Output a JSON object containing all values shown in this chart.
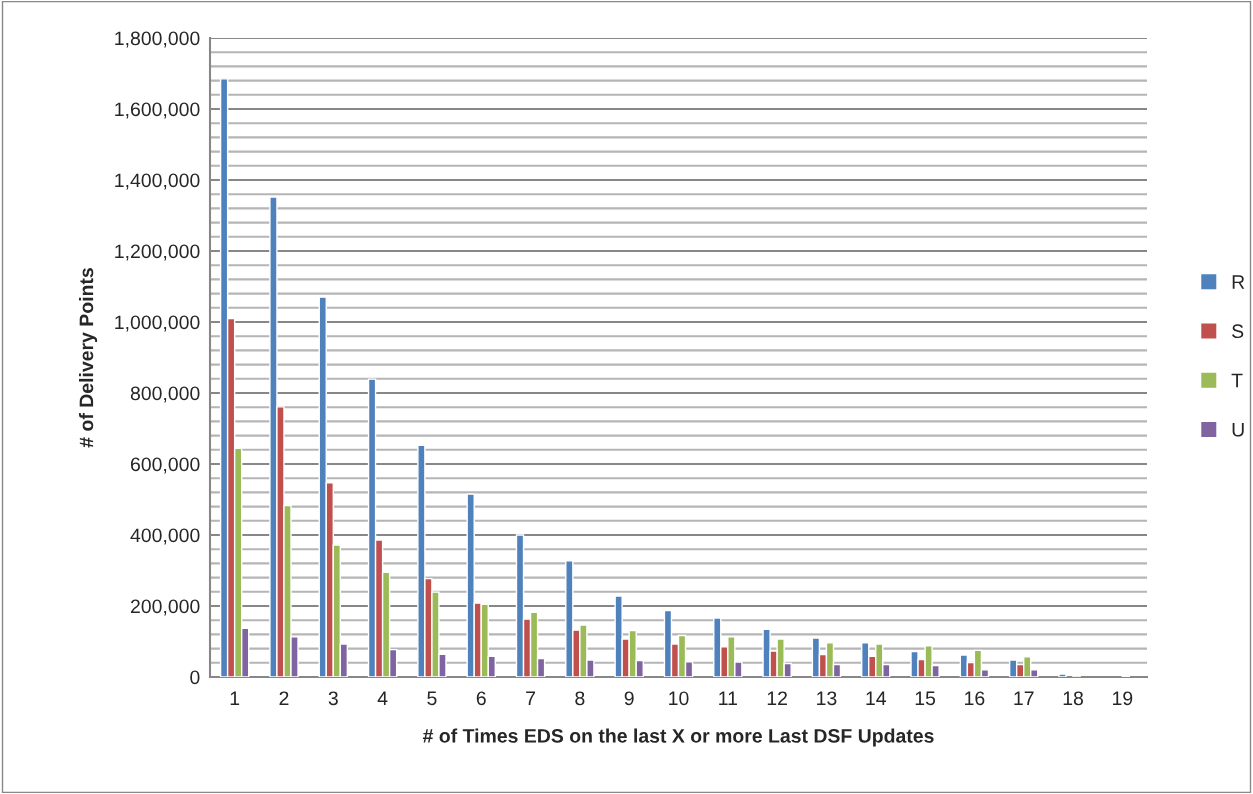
{
  "chart_data": {
    "type": "bar",
    "xlabel": "# of Times EDS on the last X or more Last DSF Updates",
    "ylabel": "# of Delivery Points",
    "categories": [
      "1",
      "2",
      "3",
      "4",
      "5",
      "6",
      "7",
      "8",
      "9",
      "10",
      "11",
      "12",
      "13",
      "14",
      "15",
      "16",
      "17",
      "18",
      "19"
    ],
    "series": [
      {
        "name": "R",
        "color": "#4f81bd",
        "values": [
          1685000,
          1352000,
          1070000,
          839000,
          653000,
          515000,
          400000,
          327000,
          228000,
          187000,
          166000,
          134000,
          110000,
          96000,
          72000,
          62000,
          48000,
          8000,
          null
        ]
      },
      {
        "name": "S",
        "color": "#c0504d",
        "values": [
          1010000,
          761000,
          547000,
          386000,
          277000,
          208000,
          163000,
          132000,
          107000,
          93000,
          85000,
          73000,
          63000,
          58000,
          49000,
          41000,
          35000,
          null,
          null
        ]
      },
      {
        "name": "T",
        "color": "#9bbb59",
        "values": [
          644000,
          483000,
          372000,
          295000,
          239000,
          205000,
          182000,
          146000,
          131000,
          117000,
          113000,
          107000,
          96000,
          93000,
          88000,
          75000,
          57000,
          5000,
          4000
        ]
      },
      {
        "name": "U",
        "color": "#8064a2",
        "values": [
          137000,
          113000,
          93000,
          77000,
          64000,
          58000,
          52000,
          48000,
          46000,
          43000,
          42000,
          38000,
          35000,
          35000,
          32000,
          20000,
          20000,
          null,
          null
        ]
      }
    ],
    "ylim": [
      0,
      1800000
    ],
    "yticks": [
      {
        "value": 0,
        "label": "0"
      },
      {
        "value": 40000,
        "label": null
      },
      {
        "value": 80000,
        "label": null
      },
      {
        "value": 120000,
        "label": null
      },
      {
        "value": 160000,
        "label": null
      },
      {
        "value": 200000,
        "label": "200,000"
      },
      {
        "value": 240000,
        "label": null
      },
      {
        "value": 280000,
        "label": null
      },
      {
        "value": 320000,
        "label": null
      },
      {
        "value": 360000,
        "label": null
      },
      {
        "value": 400000,
        "label": "400,000"
      },
      {
        "value": 440000,
        "label": null
      },
      {
        "value": 480000,
        "label": null
      },
      {
        "value": 520000,
        "label": null
      },
      {
        "value": 560000,
        "label": null
      },
      {
        "value": 600000,
        "label": "600,000"
      },
      {
        "value": 640000,
        "label": null
      },
      {
        "value": 680000,
        "label": null
      },
      {
        "value": 720000,
        "label": null
      },
      {
        "value": 760000,
        "label": null
      },
      {
        "value": 800000,
        "label": "800,000"
      },
      {
        "value": 840000,
        "label": null
      },
      {
        "value": 880000,
        "label": null
      },
      {
        "value": 920000,
        "label": null
      },
      {
        "value": 960000,
        "label": null
      },
      {
        "value": 1000000,
        "label": "1,000,000"
      },
      {
        "value": 1040000,
        "label": null
      },
      {
        "value": 1080000,
        "label": null
      },
      {
        "value": 1120000,
        "label": null
      },
      {
        "value": 1160000,
        "label": null
      },
      {
        "value": 1200000,
        "label": "1,200,000"
      },
      {
        "value": 1240000,
        "label": null
      },
      {
        "value": 1280000,
        "label": null
      },
      {
        "value": 1320000,
        "label": null
      },
      {
        "value": 1360000,
        "label": null
      },
      {
        "value": 1400000,
        "label": "1,400,000"
      },
      {
        "value": 1440000,
        "label": null
      },
      {
        "value": 1480000,
        "label": null
      },
      {
        "value": 1520000,
        "label": null
      },
      {
        "value": 1560000,
        "label": null
      },
      {
        "value": 1600000,
        "label": "1,600,000"
      },
      {
        "value": 1640000,
        "label": null
      },
      {
        "value": 1680000,
        "label": null
      },
      {
        "value": 1720000,
        "label": null
      },
      {
        "value": 1760000,
        "label": null
      },
      {
        "value": 1800000,
        "label": "1,800,000"
      }
    ],
    "grid": "y",
    "legend": "right"
  }
}
